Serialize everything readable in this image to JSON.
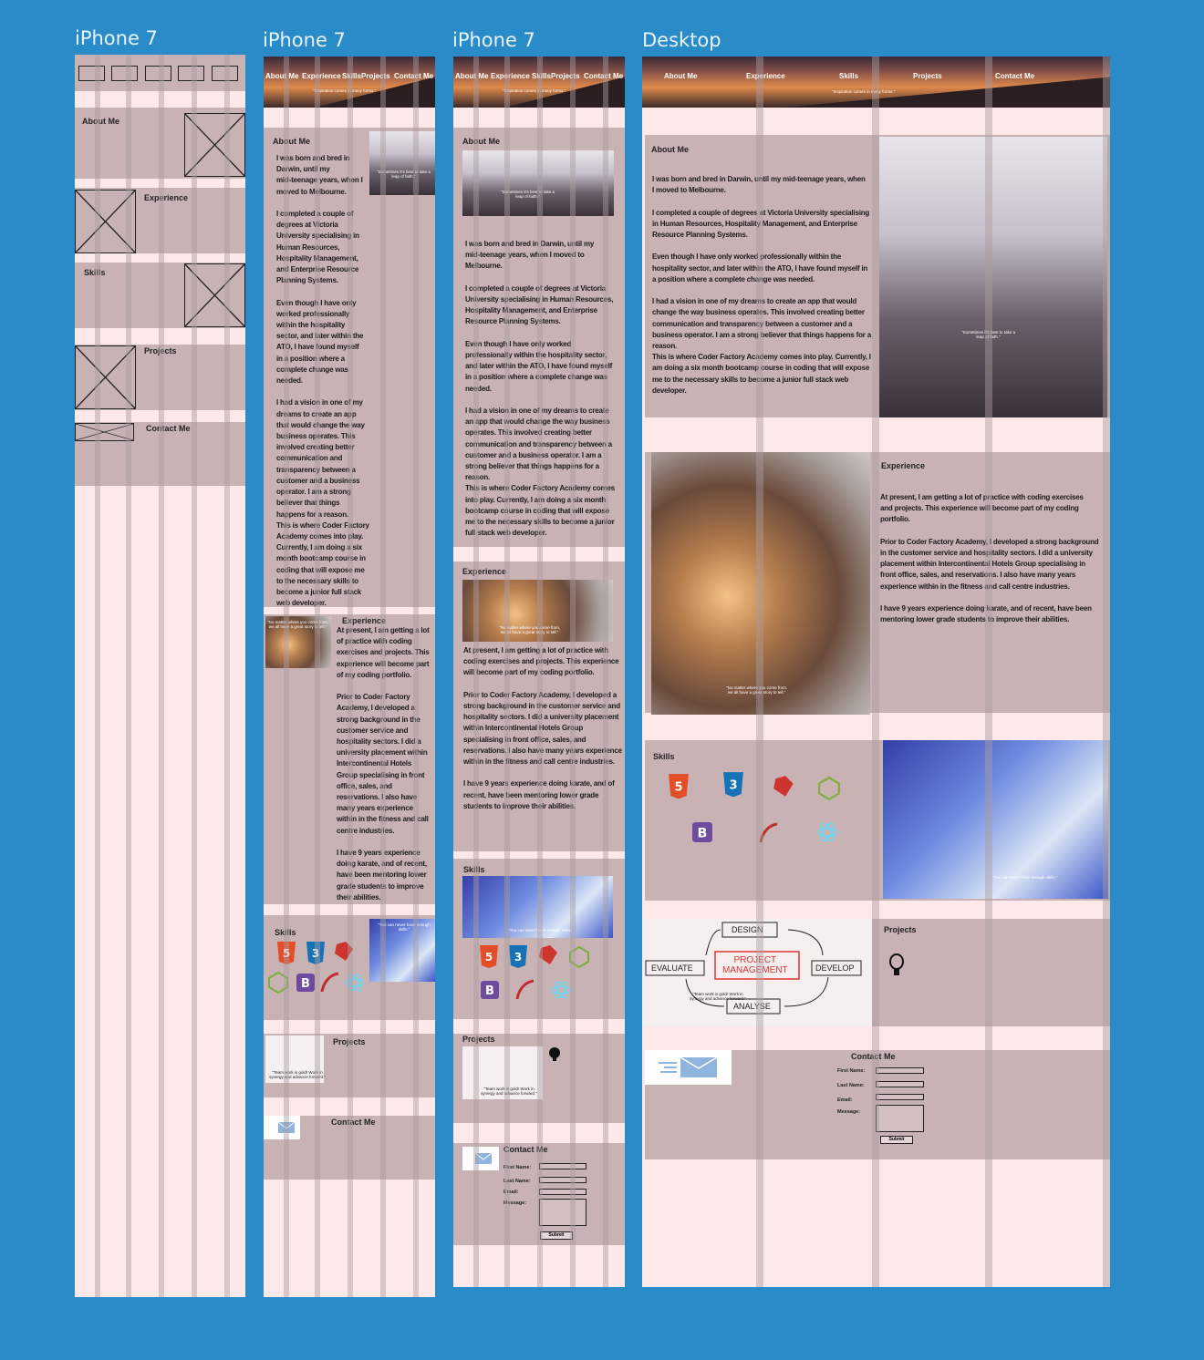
{
  "artboards": [
    {
      "title": "iPhone 7"
    },
    {
      "title": "iPhone 7"
    },
    {
      "title": "iPhone 7"
    },
    {
      "title": "Desktop"
    }
  ],
  "nav": {
    "about": "About Me",
    "experience": "Experience",
    "skills": "Skills",
    "projects": "Projects",
    "contact": "Contact Me"
  },
  "hero": {
    "tagline": "\"Inspiration comes in many forms.\""
  },
  "sections": {
    "about": "About Me",
    "experience": "Experience",
    "skills": "Skills",
    "projects": "Projects",
    "contact": "Contact Me"
  },
  "about_text_narrow": "I was born and bred in\nDarwin, until my\nmid-teenage years, when I\nmoved to Melbourne.\n\nI completed a couple of\ndegrees at Victoria\nUniversity specialising in\nHuman Resources,\nHospitality Management,\nand Enterprise Resource\nPlanning Systems.\n\nEven though I have only\nworked professionally\nwithin the hospitality\nsector, and later within the\nATO, I have found myself\nin a position where a\ncomplete change was\nneeded.\n\nI had a vision in one of my\ndreams to create an app\nthat would change the way\nbusiness operates. This\ninvolved creating better\ncommunication and\ntransparency between a\ncustomer and a business\noperator. I am a strong\nbeliever that things\nhappens for a reason.\nThis is where Coder Factory\nAcademy comes into play.\nCurrently, I am doing a six\nmonth bootcamp course in\ncoding that will expose me\nto the necessary skills to\nbecome a junior full stack\nweb developer.",
  "about_text_mid": "I was born and bred in Darwin, until my\nmid-teenage years, when I moved to\nMelbourne.\n\nI completed a couple of degrees at Victoria\nUniversity specialising in Human Resources,\nHospitality Management, and Enterprise\nResource Planning Systems.\n\nEven though I have only worked\nprofessionally within the hospitality sector,\nand later within the ATO, I have found myself\nin a position where a complete change was\nneeded.\n\nI had a vision in one of my dreams to create\nan app that would change the way business\noperates. This involved creating better\ncommunication and transparency between a\ncustomer and a business operator. I am a\nstrong believer that things happens for a\nreason.\nThis is where Coder Factory Academy comes\ninto play. Currently, I am doing a six month\nbootcamp course in coding that will expose\nme to the necessary skills to become a junior\nfull stack web developer.",
  "about_text_wide": "I was born and bred in Darwin, until my mid-teenage years, when\nI moved to Melbourne.\n\nI completed a couple of degrees at Victoria University specialising\nin Human Resources, Hospitality Management, and Enterprise\nResource Planning Systems.\n\nEven though I have only worked professionally within the\nhospitality sector, and later within the ATO, I have found myself in\na position where a complete change was needed.\n\nI had a vision in one of my dreams to create an app that would\nchange the way business operates. This involved creating better\ncommunication and transparency between a customer and a\nbusiness operator. I am a strong believer that things happens for a\nreason.\nThis is where Coder Factory Academy comes into play. Currently, I\nam doing a six month bootcamp course in coding that will expose\nme to the necessary skills to become a junior full stack web\ndeveloper.",
  "exp_text_narrow": "At present, I am getting a lot\nof practice with coding\nexercises and projects. This\nexperience will become part\nof my coding portfolio.\n\nPrior to Coder Factory\nAcademy, I developed a\nstrong background in the\ncustomer service and\nhospitality sectors. I did a\nuniversity placement within\nIntercontinental Hotels\nGroup specialising in front\noffice, sales, and\nreservations. I also have\nmany years experience\nwithin in the fitness and call\ncentre industries.\n\nI have 9 years experience\ndoing karate, and of recent,\nhave been mentoring lower\ngrade students to improve\ntheir abilities.",
  "exp_text_mid": "At present, I am getting a lot of practice with\ncoding exercises and projects. This experience\nwill become part of my coding portfolio.\n\nPrior to Coder Factory Academy, I developed a\nstrong background in the customer service and\nhospitality sectors. I did a university placement\nwithin Intercontinental Hotels Group\nspecialising in front office, sales, and\nreservations. I also have many years experience\nwithin in the fitness and call centre industries.\n\nI have 9 years experience doing karate, and of\nrecent, have been mentoring lower grade\nstudents to improve their abilities.",
  "exp_text_wide": "At present, I am getting a lot of practice with coding exercises\nand projects. This experience will become part of my coding\nportfolio.\n\nPrior to Coder Factory Academy, I developed a strong background\nin the customer service and hospitality sectors. I did a university\nplacement within Intercontinental Hotels Group specialising in\nfront office, sales, and reservations. I also have many years\nexperience within in the fitness and call centre industries.\n\nI have 9 years experience doing karate, and of recent, have been\nmentoring lower grade students to improve their abilities.",
  "captions": {
    "about": "\"Sometimes it's best to take a\nleap of faith.\"",
    "experience": "\"No matter where you come from,\nwe all have a great story to tell.\"",
    "skills": "\"You can never have enough skills.\"",
    "projects": "\"Team work is gold! Work in\nsynergy and advance forward.\""
  },
  "pm_diagram": {
    "design": "DESIGN",
    "develop": "DEVELOP",
    "analyse": "ANALYSE",
    "evaluate": "EVALUATE",
    "center": "PROJECT\nMANAGEMENT"
  },
  "skills_icons": {
    "html": "HTML",
    "css": "CSS",
    "ruby": "Ruby",
    "bootstrap": "BOOTSTRAP",
    "rails": "RAILS",
    "js": "JS"
  },
  "form": {
    "first_name": "First Name:",
    "last_name": "Last Name:",
    "email": "Email:",
    "message": "Message:",
    "submit": "Submit"
  }
}
